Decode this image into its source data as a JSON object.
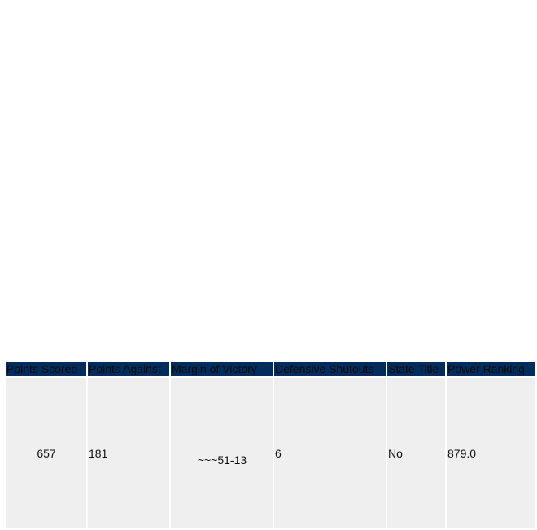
{
  "table": {
    "headers": [
      "Points Scored",
      "Points Against",
      "Margin of Victory",
      "Defensive Shutouts",
      "State Title",
      "Power Ranking"
    ],
    "row": {
      "points_scored": "657",
      "points_against": "181",
      "margin_of_victory": "~~~51-13",
      "defensive_shutouts": "6",
      "state_title": "No",
      "power_ranking": "879.0"
    }
  }
}
